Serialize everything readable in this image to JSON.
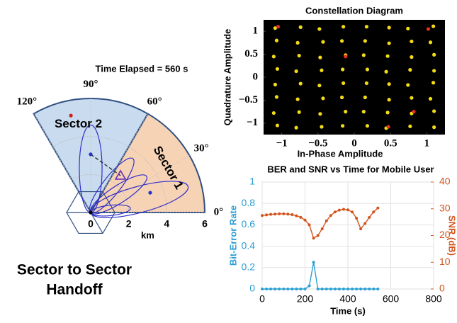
{
  "caption_lines": [
    "Sector to Sector",
    "Handoff"
  ],
  "chart_data": [
    {
      "type": "polar",
      "title": "Time Elapsed = 560 s",
      "rlabel": "km",
      "rlim": [
        0,
        6
      ],
      "rticks": [
        0,
        2,
        4,
        6
      ],
      "thetaticks": [
        {
          "value": 120,
          "label": "120°"
        },
        {
          "value": 90,
          "label": "90°"
        },
        {
          "value": 60,
          "label": "60°"
        },
        {
          "value": 30,
          "label": "30°"
        },
        {
          "value": 0,
          "label": "0°"
        }
      ],
      "sectors": [
        {
          "name": "Sector 1",
          "color": "#f7d3b6",
          "range": [
            0,
            60
          ]
        },
        {
          "name": "Sector 2",
          "color": "#c9dbef",
          "range": [
            60,
            120
          ]
        }
      ],
      "beams": [
        {
          "angle": 90,
          "length": 4.6
        },
        {
          "angle": 52,
          "length": 3.6
        },
        {
          "angle": 33,
          "length": 3.5
        },
        {
          "angle": 15,
          "length": 5.3
        },
        {
          "angle": 6,
          "length": 2.1
        }
      ],
      "points": [
        {
          "color": "#000000",
          "x": 0,
          "y": 0
        },
        {
          "color": "#2233cc",
          "x": 0,
          "y": 3.06
        },
        {
          "color": "#2233cc",
          "x": 3.13,
          "y": 1.04
        },
        {
          "color": "#d01f1f",
          "x": -1.04,
          "y": 5.1
        },
        {
          "color": "#6a2bb8",
          "x": 1.57,
          "y": 1.94,
          "marker": "triangle"
        }
      ]
    },
    {
      "type": "scatter",
      "title": "Constellation Diagram",
      "xlabel": "In-Phase Amplitude",
      "ylabel": "Quadrature Amplitude",
      "xlim": [
        -1.25,
        1.25
      ],
      "ylim": [
        -1.25,
        1.25
      ],
      "xticks": [
        {
          "value": -1,
          "label": "−1"
        },
        {
          "value": -0.5,
          "label": "−0.5"
        },
        0,
        0.5,
        1
      ],
      "yticks": [
        {
          "value": -1,
          "label": "−1"
        },
        {
          "value": -0.5,
          "label": "−0.5"
        },
        0,
        0.5,
        1
      ],
      "series": [
        {
          "color": "#f3dc16",
          "x": [
            -1.06,
            -0.8,
            -0.45,
            -0.16,
            0.18,
            0.44,
            0.77,
            1.1,
            -1.11,
            -0.76,
            -0.47,
            -0.12,
            0.13,
            0.46,
            0.79,
            1.1,
            -1.07,
            -0.78,
            -0.43,
            -0.17,
            0.15,
            0.48,
            0.79,
            1.05,
            -1.09,
            -0.74,
            -0.48,
            -0.15,
            0.17,
            0.48,
            0.74,
            1.09,
            -1.06,
            -0.8,
            -0.45,
            -0.16,
            0.18,
            0.44,
            0.77,
            1.1,
            -1.11,
            -0.76,
            -0.47,
            -0.12,
            0.13,
            0.46,
            0.79,
            1.1,
            -1.07,
            -0.78,
            -0.43,
            -0.17,
            0.15,
            0.48,
            0.79,
            1.05,
            -1.09,
            -0.74,
            -0.48,
            -0.15,
            0.17,
            0.48,
            0.74,
            1.09
          ],
          "y": [
            -1.05,
            -1.1,
            -1.08,
            -1.06,
            -1.06,
            -1.11,
            -1.07,
            -1.09,
            -0.78,
            -0.76,
            -0.8,
            -0.75,
            -0.75,
            -0.77,
            -0.79,
            -0.74,
            -0.43,
            -0.48,
            -0.46,
            -0.44,
            -0.44,
            -0.49,
            -0.45,
            -0.47,
            -0.16,
            -0.14,
            -0.18,
            -0.13,
            -0.13,
            -0.15,
            -0.17,
            -0.12,
            0.18,
            0.13,
            0.15,
            0.17,
            0.17,
            0.12,
            0.16,
            0.14,
            0.45,
            0.47,
            0.43,
            0.48,
            0.48,
            0.46,
            0.44,
            0.49,
            0.8,
            0.75,
            0.77,
            0.79,
            0.79,
            0.74,
            0.78,
            0.76,
            1.07,
            1.09,
            1.05,
            1.1,
            1.1,
            1.08,
            1.06,
            1.11
          ]
        },
        {
          "color": "#e0301e",
          "x": [
            -1.05,
            0.82,
            1.02,
            -0.12,
            0.47
          ],
          "y": [
            1.1,
            -0.75,
            1.05,
            0.45,
            -1.08
          ]
        }
      ]
    },
    {
      "type": "line",
      "title": "BER and SNR vs Time for Mobile User",
      "xlabel": "Time (s)",
      "ylabel": "Bit-Error Rate",
      "y2label": "SNR (dB)",
      "xlim": [
        0,
        800
      ],
      "xticks": [
        0,
        200,
        400,
        600,
        800
      ],
      "ylim": [
        0,
        1
      ],
      "yticks": [
        0,
        0.2,
        0.4,
        0.6,
        0.8,
        1
      ],
      "y2lim": [
        0,
        40
      ],
      "y2ticks": [
        0,
        10,
        20,
        30,
        40
      ],
      "grid": true,
      "x": [
        0,
        20,
        40,
        60,
        80,
        100,
        120,
        140,
        160,
        180,
        200,
        220,
        240,
        260,
        280,
        300,
        320,
        340,
        360,
        380,
        400,
        420,
        440,
        460,
        480,
        500,
        520,
        540
      ],
      "series": [
        {
          "color": "#2b9fd3",
          "values": [
            0,
            0,
            0,
            0,
            0,
            0,
            0,
            0,
            0,
            0,
            0,
            0.03,
            0.25,
            0,
            0,
            0,
            0,
            0,
            0,
            0,
            0,
            0,
            0,
            0,
            0,
            0,
            0,
            0
          ]
        },
        {
          "color": "#d2541c",
          "axis": "y2",
          "values": [
            27.5,
            27.7,
            27.9,
            28,
            28.1,
            28.1,
            28,
            27.8,
            27.4,
            26.8,
            25.8,
            24,
            19,
            20,
            22.5,
            25.5,
            27.5,
            28.8,
            29.5,
            29.8,
            29.6,
            28.8,
            26.5,
            22.5,
            24.5,
            26.8,
            28.8,
            30.3
          ]
        }
      ]
    }
  ]
}
